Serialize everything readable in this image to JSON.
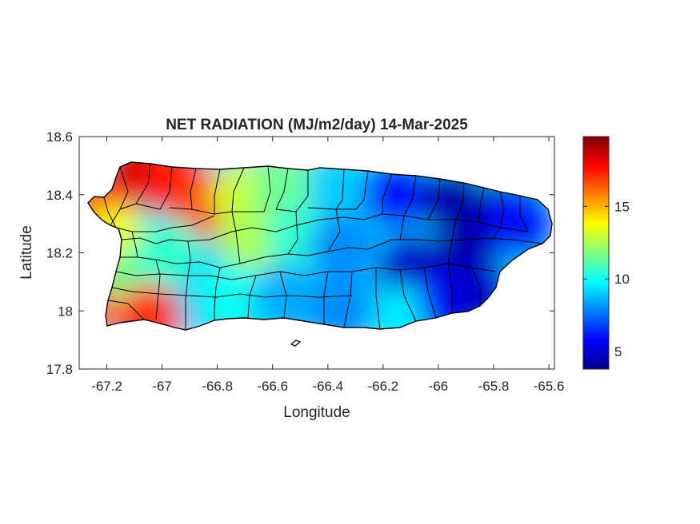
{
  "chart_data": {
    "type": "heatmap",
    "title": "NET RADIATION (MJ/m2/day) 14-Mar-2025",
    "xlabel": "Longitude",
    "ylabel": "Latitude",
    "xlim": [
      -67.3,
      -65.58
    ],
    "ylim": [
      17.8,
      18.6
    ],
    "xticks": [
      -67.2,
      -67,
      -66.8,
      -66.6,
      -66.4,
      -66.2,
      -66,
      -65.8,
      -65.6
    ],
    "xtick_labels": [
      "-67.2",
      "-67",
      "-66.8",
      "-66.6",
      "-66.4",
      "-66.2",
      "-66",
      "-65.8",
      "-65.6"
    ],
    "yticks": [
      17.8,
      18,
      18.2,
      18.4,
      18.6
    ],
    "ytick_labels": [
      "17.8",
      "18",
      "18.2",
      "18.4",
      "18.6"
    ],
    "colorbar": {
      "colormap": "jet",
      "min": 3.8,
      "max": 19.8,
      "ticks": [
        5,
        10,
        15
      ],
      "tick_labels": [
        "5",
        "10",
        "15"
      ]
    },
    "field_samples": [
      {
        "lon": -67.1,
        "lat": 18.47,
        "value": 18.5
      },
      {
        "lon": -66.95,
        "lat": 18.44,
        "value": 17.5
      },
      {
        "lon": -66.82,
        "lat": 18.36,
        "value": 16.5
      },
      {
        "lon": -67.22,
        "lat": 18.35,
        "value": 17.0
      },
      {
        "lon": -67.17,
        "lat": 18.25,
        "value": 13.5
      },
      {
        "lon": -67.2,
        "lat": 18.05,
        "value": 16.5
      },
      {
        "lon": -67.1,
        "lat": 18.1,
        "value": 11.5
      },
      {
        "lon": -67.05,
        "lat": 17.98,
        "value": 17.0
      },
      {
        "lon": -66.98,
        "lat": 18.2,
        "value": 10.5
      },
      {
        "lon": -66.7,
        "lat": 18.4,
        "value": 13.0
      },
      {
        "lon": -66.68,
        "lat": 18.25,
        "value": 12.5
      },
      {
        "lon": -66.75,
        "lat": 18.05,
        "value": 10.0
      },
      {
        "lon": -66.55,
        "lat": 18.42,
        "value": 11.5
      },
      {
        "lon": -66.5,
        "lat": 18.25,
        "value": 10.5
      },
      {
        "lon": -66.55,
        "lat": 18.05,
        "value": 8.5
      },
      {
        "lon": -66.35,
        "lat": 18.42,
        "value": 9.0
      },
      {
        "lon": -66.35,
        "lat": 18.22,
        "value": 8.0
      },
      {
        "lon": -66.35,
        "lat": 18.0,
        "value": 8.0
      },
      {
        "lon": -66.15,
        "lat": 18.4,
        "value": 6.0
      },
      {
        "lon": -66.1,
        "lat": 18.15,
        "value": 5.0
      },
      {
        "lon": -66.12,
        "lat": 17.97,
        "value": 9.5
      },
      {
        "lon": -65.95,
        "lat": 18.38,
        "value": 4.5
      },
      {
        "lon": -65.9,
        "lat": 18.2,
        "value": 4.5
      },
      {
        "lon": -65.95,
        "lat": 18.02,
        "value": 6.0
      },
      {
        "lon": -65.75,
        "lat": 18.33,
        "value": 4.5
      },
      {
        "lon": -65.7,
        "lat": 18.3,
        "value": 6.0
      },
      {
        "lon": -65.85,
        "lat": 18.05,
        "value": 5.0
      }
    ]
  },
  "colors": {
    "axis": "#262626",
    "background": "#ffffff",
    "boundaries": "#000000"
  }
}
